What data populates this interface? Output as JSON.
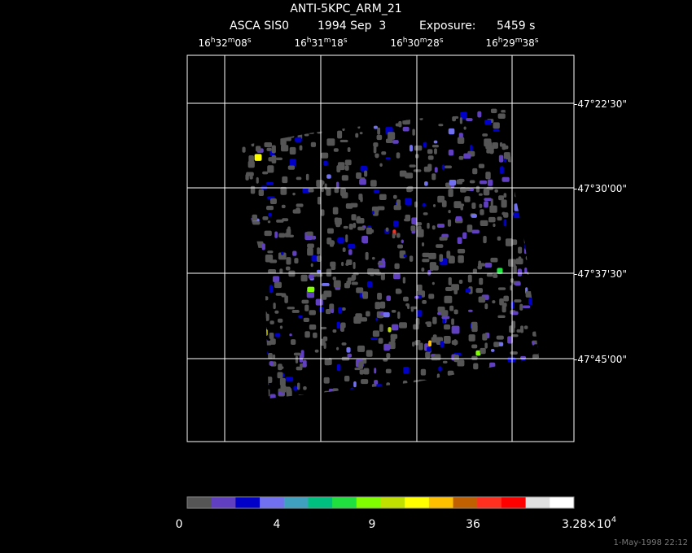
{
  "header": {
    "title": "ANTI-5KPC_ARM_21",
    "instrument": "ASCA SIS0",
    "date": "1994 Sep  3",
    "exposure_label": "Exposure:",
    "exposure": "5459 s"
  },
  "ra_labels": [
    [
      "16",
      "h",
      "32",
      "m",
      "08",
      "s"
    ],
    [
      "16",
      "h",
      "31",
      "m",
      "18",
      "s"
    ],
    [
      "16",
      "h",
      "30",
      "m",
      "28",
      "s"
    ],
    [
      "16",
      "h",
      "29",
      "m",
      "38",
      "s"
    ]
  ],
  "dec_labels": [
    "-47°22'30\"",
    "-47°30'00\"",
    "-47°37'30\"",
    "-47°45'00\""
  ],
  "colorbar": {
    "colors": [
      "#555555",
      "#6040c0",
      "#0000c8",
      "#7070f0",
      "#40a0c0",
      "#00c080",
      "#20e040",
      "#80ff00",
      "#c0e000",
      "#ffff00",
      "#ffc000",
      "#c06000",
      "#ff3020",
      "#ff0000",
      "#e0e0e0",
      "#ffffff"
    ],
    "labels": [
      [
        "0"
      ],
      [
        "4"
      ],
      [
        "9"
      ],
      [
        "36"
      ],
      [
        "3.28×10",
        "4"
      ]
    ]
  },
  "timestamp": "1-May-1998 22:12"
}
